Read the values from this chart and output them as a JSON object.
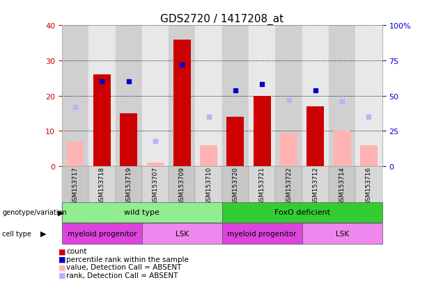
{
  "title": "GDS2720 / 1417208_at",
  "samples": [
    "GSM153717",
    "GSM153718",
    "GSM153719",
    "GSM153707",
    "GSM153709",
    "GSM153710",
    "GSM153720",
    "GSM153721",
    "GSM153722",
    "GSM153712",
    "GSM153714",
    "GSM153716"
  ],
  "counts": [
    null,
    26,
    15,
    null,
    36,
    null,
    14,
    20,
    null,
    17,
    null,
    null
  ],
  "counts_absent": [
    7,
    null,
    null,
    1,
    null,
    6,
    null,
    null,
    9.5,
    null,
    10,
    6
  ],
  "percentile_rank": [
    null,
    60,
    60,
    null,
    72,
    null,
    54,
    58,
    null,
    54,
    null,
    null
  ],
  "rank_absent": [
    42,
    null,
    null,
    18,
    null,
    35,
    null,
    null,
    47,
    null,
    46,
    35
  ],
  "ylim_left": [
    0,
    40
  ],
  "ylim_right": [
    0,
    100
  ],
  "yticks_left": [
    0,
    10,
    20,
    30,
    40
  ],
  "yticks_right": [
    0,
    25,
    50,
    75,
    100
  ],
  "ytick_labels_right": [
    "0",
    "25",
    "50",
    "75",
    "100%"
  ],
  "bar_color": "#cc0000",
  "bar_absent_color": "#ffb3b3",
  "dot_color": "#0000cc",
  "dot_absent_color": "#b3b3ff",
  "left_yaxis_color": "#cc0000",
  "right_yaxis_color": "#0000cc",
  "col_bg_even": "#d0d0d0",
  "col_bg_odd": "#e8e8e8",
  "genotype_groups": [
    {
      "label": "wild type",
      "start": 0,
      "end": 5,
      "color": "#90ee90"
    },
    {
      "label": "FoxO deficient",
      "start": 6,
      "end": 11,
      "color": "#33cc33"
    }
  ],
  "cell_groups": [
    {
      "label": "myeloid progenitor",
      "start": 0,
      "end": 2,
      "color": "#dd44dd"
    },
    {
      "label": "LSK",
      "start": 3,
      "end": 5,
      "color": "#ee88ee"
    },
    {
      "label": "myeloid progenitor",
      "start": 6,
      "end": 8,
      "color": "#dd44dd"
    },
    {
      "label": "LSK",
      "start": 9,
      "end": 11,
      "color": "#ee88ee"
    }
  ],
  "legend_items": [
    {
      "label": "count",
      "color": "#cc0000"
    },
    {
      "label": "percentile rank within the sample",
      "color": "#0000cc"
    },
    {
      "label": "value, Detection Call = ABSENT",
      "color": "#ffb3b3"
    },
    {
      "label": "rank, Detection Call = ABSENT",
      "color": "#b3b3ff"
    }
  ]
}
